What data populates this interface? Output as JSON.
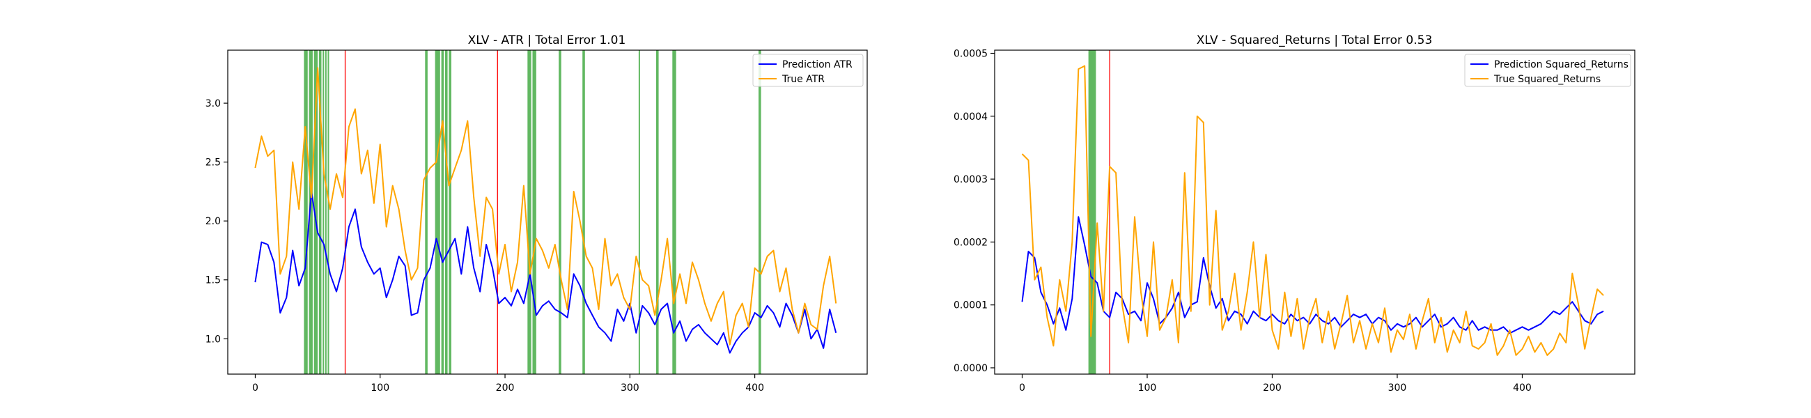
{
  "chart_data": [
    {
      "type": "line",
      "title": "XLV - ATR | Total Error 1.01",
      "xlabel": "",
      "ylabel": "",
      "xlim": [
        -22,
        490
      ],
      "ylim": [
        0.7,
        3.45
      ],
      "xticks": [
        0,
        100,
        200,
        300,
        400
      ],
      "yticks": [
        1.0,
        1.5,
        2.0,
        2.5,
        3.0
      ],
      "ytick_decimals": 1,
      "grid": false,
      "legend_position": "top-right",
      "series": [
        {
          "name": "Prediction ATR",
          "color": "#0000ff",
          "x": [
            0,
            5,
            10,
            15,
            20,
            25,
            30,
            35,
            40,
            45,
            50,
            55,
            60,
            65,
            70,
            75,
            80,
            85,
            90,
            95,
            100,
            105,
            110,
            115,
            120,
            125,
            130,
            135,
            140,
            145,
            150,
            155,
            160,
            165,
            170,
            175,
            180,
            185,
            190,
            195,
            200,
            205,
            210,
            215,
            220,
            225,
            230,
            235,
            240,
            245,
            250,
            255,
            260,
            265,
            270,
            275,
            280,
            285,
            290,
            295,
            300,
            305,
            310,
            315,
            320,
            325,
            330,
            335,
            340,
            345,
            350,
            355,
            360,
            365,
            370,
            375,
            380,
            385,
            390,
            395,
            400,
            405,
            410,
            415,
            420,
            425,
            430,
            435,
            440,
            445,
            450,
            455,
            460,
            465
          ],
          "y": [
            1.48,
            1.82,
            1.8,
            1.65,
            1.22,
            1.35,
            1.75,
            1.45,
            1.6,
            2.25,
            1.9,
            1.8,
            1.55,
            1.4,
            1.6,
            1.95,
            2.1,
            1.78,
            1.65,
            1.55,
            1.6,
            1.35,
            1.5,
            1.7,
            1.62,
            1.2,
            1.22,
            1.5,
            1.6,
            1.85,
            1.65,
            1.75,
            1.85,
            1.55,
            1.95,
            1.6,
            1.4,
            1.8,
            1.6,
            1.3,
            1.35,
            1.28,
            1.42,
            1.3,
            1.55,
            1.2,
            1.28,
            1.32,
            1.25,
            1.22,
            1.18,
            1.55,
            1.45,
            1.3,
            1.2,
            1.1,
            1.05,
            0.98,
            1.25,
            1.15,
            1.3,
            1.05,
            1.28,
            1.22,
            1.12,
            1.25,
            1.3,
            1.05,
            1.15,
            0.98,
            1.08,
            1.12,
            1.05,
            1.0,
            0.95,
            1.05,
            0.88,
            0.98,
            1.05,
            1.1,
            1.22,
            1.18,
            1.28,
            1.22,
            1.1,
            1.3,
            1.2,
            1.05,
            1.25,
            1.0,
            1.08,
            0.92,
            1.25,
            1.05
          ]
        },
        {
          "name": "True ATR",
          "color": "#ffa500",
          "x": [
            0,
            5,
            10,
            15,
            20,
            25,
            30,
            35,
            40,
            45,
            50,
            55,
            60,
            65,
            70,
            75,
            80,
            85,
            90,
            95,
            100,
            105,
            110,
            115,
            120,
            125,
            130,
            135,
            140,
            145,
            150,
            155,
            160,
            165,
            170,
            175,
            180,
            185,
            190,
            195,
            200,
            205,
            210,
            215,
            220,
            225,
            230,
            235,
            240,
            245,
            250,
            255,
            260,
            265,
            270,
            275,
            280,
            285,
            290,
            295,
            300,
            305,
            310,
            315,
            320,
            325,
            330,
            335,
            340,
            345,
            350,
            355,
            360,
            365,
            370,
            375,
            380,
            385,
            390,
            395,
            400,
            405,
            410,
            415,
            420,
            425,
            430,
            435,
            440,
            445,
            450,
            455,
            460,
            465
          ],
          "y": [
            2.45,
            2.72,
            2.55,
            2.6,
            1.55,
            1.7,
            2.5,
            2.1,
            2.8,
            2.2,
            3.3,
            2.4,
            2.1,
            2.4,
            2.2,
            2.8,
            2.95,
            2.4,
            2.6,
            2.15,
            2.65,
            1.95,
            2.3,
            2.1,
            1.75,
            1.5,
            1.6,
            2.35,
            2.45,
            2.5,
            2.85,
            2.3,
            2.45,
            2.6,
            2.85,
            2.2,
            1.7,
            2.2,
            2.1,
            1.55,
            1.8,
            1.4,
            1.65,
            2.3,
            1.55,
            1.85,
            1.75,
            1.6,
            1.8,
            1.5,
            1.25,
            2.25,
            2.0,
            1.7,
            1.6,
            1.25,
            1.85,
            1.45,
            1.55,
            1.35,
            1.25,
            1.7,
            1.5,
            1.45,
            1.2,
            1.5,
            1.85,
            1.3,
            1.55,
            1.3,
            1.65,
            1.5,
            1.3,
            1.15,
            1.3,
            1.4,
            0.95,
            1.2,
            1.3,
            1.1,
            1.6,
            1.55,
            1.7,
            1.75,
            1.4,
            1.6,
            1.25,
            1.05,
            1.3,
            1.12,
            1.08,
            1.45,
            1.7,
            1.3
          ]
        }
      ],
      "annotations": {
        "green_spans": [
          [
            39,
            42
          ],
          [
            43,
            46
          ],
          [
            47,
            50
          ],
          [
            51,
            53
          ],
          [
            54,
            55
          ],
          [
            56,
            57
          ],
          [
            58,
            59
          ],
          [
            136,
            138
          ],
          [
            144,
            148
          ],
          [
            149,
            151
          ],
          [
            152,
            154
          ],
          [
            155,
            157
          ],
          [
            218,
            221
          ],
          [
            222,
            225
          ],
          [
            243,
            245
          ],
          [
            262,
            264
          ],
          [
            307,
            308
          ],
          [
            321,
            323
          ],
          [
            334,
            337
          ],
          [
            403,
            405
          ]
        ],
        "green_color": "#2ca02c",
        "red_lines": [
          72,
          194
        ],
        "red_color": "#ff0000"
      }
    },
    {
      "type": "line",
      "title": "XLV - Squared_Returns | Total Error 0.53",
      "xlabel": "",
      "ylabel": "",
      "xlim": [
        -22,
        490
      ],
      "ylim": [
        -1e-05,
        0.000505
      ],
      "xticks": [
        0,
        100,
        200,
        300,
        400
      ],
      "yticks": [
        0.0,
        0.0001,
        0.0002,
        0.0003,
        0.0004,
        0.0005
      ],
      "ytick_decimals": 4,
      "grid": false,
      "legend_position": "top-right",
      "series": [
        {
          "name": "Prediction Squared_Returns",
          "color": "#0000ff",
          "x": [
            0,
            5,
            10,
            15,
            20,
            25,
            30,
            35,
            40,
            45,
            50,
            55,
            60,
            65,
            70,
            75,
            80,
            85,
            90,
            95,
            100,
            105,
            110,
            115,
            120,
            125,
            130,
            135,
            140,
            145,
            150,
            155,
            160,
            165,
            170,
            175,
            180,
            185,
            190,
            195,
            200,
            205,
            210,
            215,
            220,
            225,
            230,
            235,
            240,
            245,
            250,
            255,
            260,
            265,
            270,
            275,
            280,
            285,
            290,
            295,
            300,
            305,
            310,
            315,
            320,
            325,
            330,
            335,
            340,
            345,
            350,
            355,
            360,
            365,
            370,
            375,
            380,
            385,
            390,
            395,
            400,
            405,
            410,
            415,
            420,
            425,
            430,
            435,
            440,
            445,
            450,
            455,
            460,
            465
          ],
          "y": [
            0.000105,
            0.000185,
            0.000175,
            0.00012,
            0.0001,
            7e-05,
            9.5e-05,
            6e-05,
            0.00011,
            0.00024,
            0.000195,
            0.000145,
            0.000135,
            9e-05,
            8e-05,
            0.00012,
            0.00011,
            8.5e-05,
            9e-05,
            7.5e-05,
            0.000135,
            0.00011,
            7e-05,
            8e-05,
            9.5e-05,
            0.00012,
            8e-05,
            0.0001,
            0.000105,
            0.000175,
            0.00013,
            9.5e-05,
            0.00011,
            7.5e-05,
            9e-05,
            8.5e-05,
            7e-05,
            9e-05,
            8e-05,
            7.5e-05,
            8.5e-05,
            7.5e-05,
            7e-05,
            8.5e-05,
            7.5e-05,
            8e-05,
            7e-05,
            8.5e-05,
            7.5e-05,
            7e-05,
            8e-05,
            6.5e-05,
            7.5e-05,
            8.5e-05,
            8e-05,
            8.5e-05,
            7e-05,
            8e-05,
            7.5e-05,
            6e-05,
            7e-05,
            6.5e-05,
            7e-05,
            8e-05,
            6.5e-05,
            7.5e-05,
            8.5e-05,
            6.5e-05,
            7e-05,
            8e-05,
            6.5e-05,
            6e-05,
            7.5e-05,
            6e-05,
            6.5e-05,
            6e-05,
            6e-05,
            6.5e-05,
            5.5e-05,
            6e-05,
            6.5e-05,
            6e-05,
            6.5e-05,
            7e-05,
            8e-05,
            9e-05,
            8.5e-05,
            9.5e-05,
            0.000105,
            9e-05,
            7.5e-05,
            7e-05,
            8.5e-05,
            9e-05
          ]
        },
        {
          "name": "True Squared_Returns",
          "color": "#ffa500",
          "x": [
            0,
            5,
            10,
            15,
            20,
            25,
            30,
            35,
            40,
            45,
            50,
            55,
            60,
            65,
            70,
            75,
            80,
            85,
            90,
            95,
            100,
            105,
            110,
            115,
            120,
            125,
            130,
            135,
            140,
            145,
            150,
            155,
            160,
            165,
            170,
            175,
            180,
            185,
            190,
            195,
            200,
            205,
            210,
            215,
            220,
            225,
            230,
            235,
            240,
            245,
            250,
            255,
            260,
            265,
            270,
            275,
            280,
            285,
            290,
            295,
            300,
            305,
            310,
            315,
            320,
            325,
            330,
            335,
            340,
            345,
            350,
            355,
            360,
            365,
            370,
            375,
            380,
            385,
            390,
            395,
            400,
            405,
            410,
            415,
            420,
            425,
            430,
            435,
            440,
            445,
            450,
            455,
            460,
            465
          ],
          "y": [
            0.00034,
            0.00033,
            0.00014,
            0.00016,
            8e-05,
            3.5e-05,
            0.00014,
            9e-05,
            0.0002,
            0.000475,
            0.00048,
            5e-05,
            0.00023,
            9e-05,
            0.00032,
            0.00031,
            0.0001,
            4e-05,
            0.00024,
            0.00012,
            5e-05,
            0.0002,
            6e-05,
            8e-05,
            0.00014,
            4e-05,
            0.00031,
            9e-05,
            0.0004,
            0.00039,
            0.0001,
            0.00025,
            6e-05,
            9e-05,
            0.00015,
            6e-05,
            0.00012,
            0.0002,
            8e-05,
            0.00018,
            6e-05,
            3e-05,
            0.00012,
            5e-05,
            0.00011,
            3e-05,
            8e-05,
            0.00011,
            4e-05,
            9e-05,
            3e-05,
            7e-05,
            0.000115,
            4e-05,
            7.5e-05,
            3e-05,
            7e-05,
            4e-05,
            9.5e-05,
            2.5e-05,
            6e-05,
            4.5e-05,
            8.5e-05,
            3e-05,
            7.5e-05,
            0.00011,
            4e-05,
            8e-05,
            2.5e-05,
            6e-05,
            4e-05,
            9e-05,
            3.5e-05,
            3e-05,
            4e-05,
            7e-05,
            2e-05,
            3.5e-05,
            6e-05,
            2e-05,
            3e-05,
            5e-05,
            2.5e-05,
            4e-05,
            2e-05,
            3e-05,
            5.5e-05,
            4e-05,
            0.00015,
            0.0001,
            3e-05,
            8e-05,
            0.000125,
            0.000115
          ]
        }
      ],
      "annotations": {
        "green_spans": [
          [
            53,
            59
          ]
        ],
        "green_color": "#2ca02c",
        "red_lines": [
          70
        ],
        "red_color": "#ff0000"
      }
    }
  ]
}
